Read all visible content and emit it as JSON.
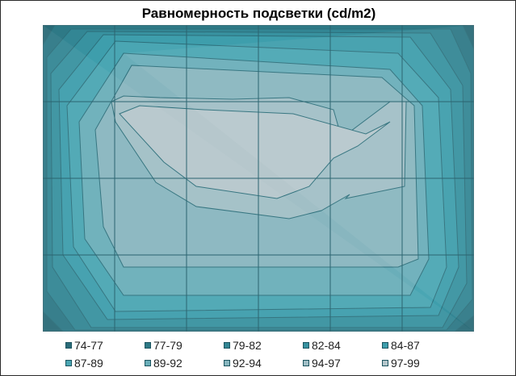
{
  "chart_data": {
    "type": "heatmap",
    "title": "Равномерность подсветки (cd/m2)",
    "grid": true,
    "legend_position": "bottom",
    "levels": [
      {
        "label": "74-77",
        "color": "#2a6b78"
      },
      {
        "label": "77-79",
        "color": "#2e7986"
      },
      {
        "label": "79-82",
        "color": "#338694"
      },
      {
        "label": "82-84",
        "color": "#3892a0"
      },
      {
        "label": "84-87",
        "color": "#3e9eac"
      },
      {
        "label": "87-89",
        "color": "#4aa6b3"
      },
      {
        "label": "89-92",
        "color": "#6aaeb9"
      },
      {
        "label": "92-94",
        "color": "#88b6bf"
      },
      {
        "label": "94-97",
        "color": "#a1bfc6"
      },
      {
        "label": "97-99",
        "color": "#b6c7cc"
      }
    ]
  }
}
